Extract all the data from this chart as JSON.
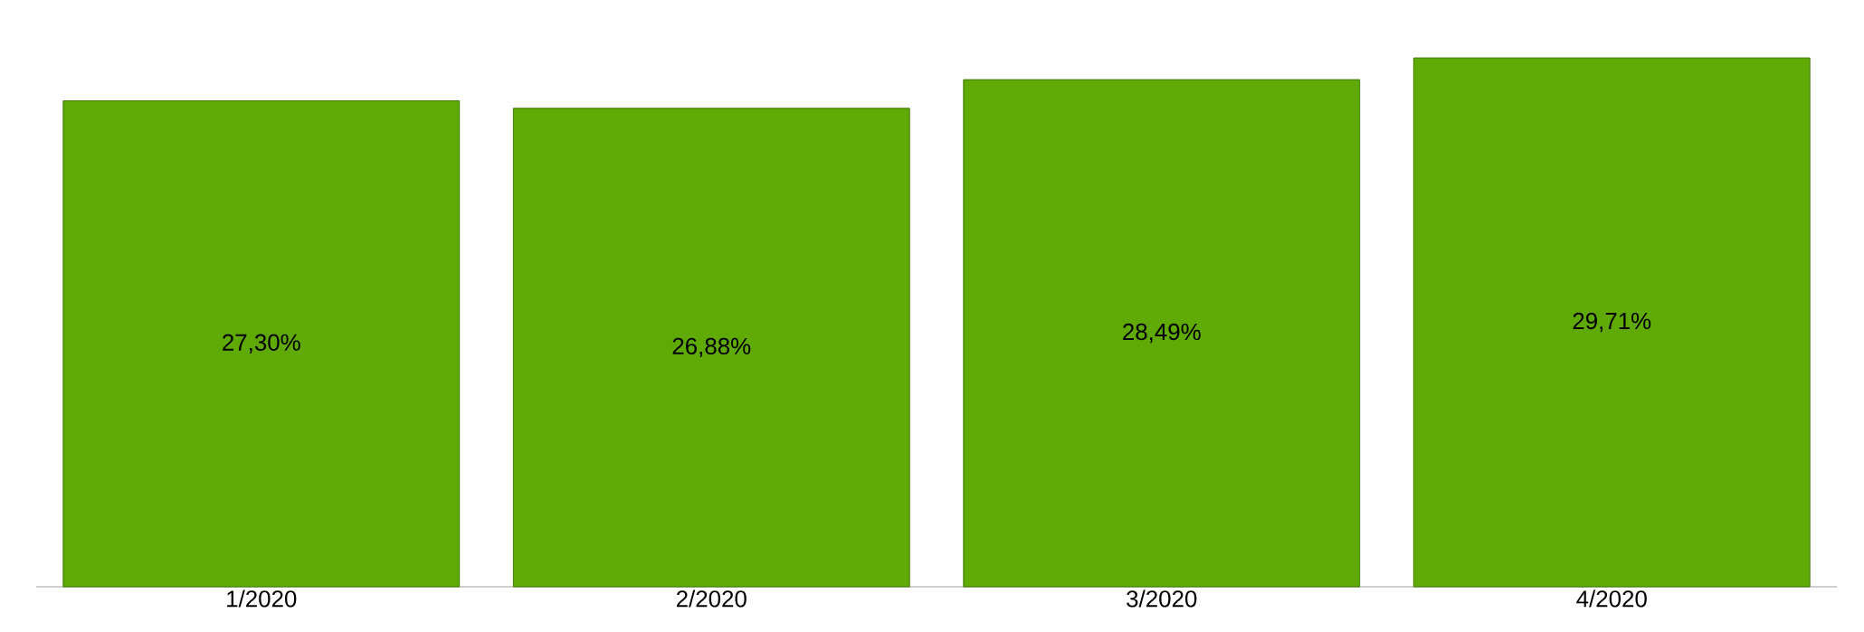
{
  "chart_data": {
    "type": "bar",
    "categories": [
      "1/2020",
      "2/2020",
      "3/2020",
      "4/2020"
    ],
    "values": [
      27.3,
      26.88,
      28.49,
      29.71
    ],
    "value_labels": [
      "27,30%",
      "26,88%",
      "28,49%",
      "29,71%"
    ],
    "color": "#5faa05"
  }
}
